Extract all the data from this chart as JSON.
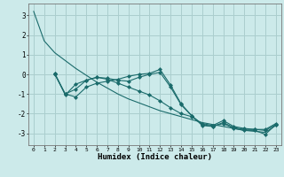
{
  "xlabel": "Humidex (Indice chaleur)",
  "background_color": "#cceaea",
  "grid_color": "#aacece",
  "line_color": "#1a6b6b",
  "xlim": [
    -0.5,
    23.5
  ],
  "ylim": [
    -3.6,
    3.6
  ],
  "yticks": [
    -3,
    -2,
    -1,
    0,
    1,
    2,
    3
  ],
  "xticks": [
    0,
    1,
    2,
    3,
    4,
    5,
    6,
    7,
    8,
    9,
    10,
    11,
    12,
    13,
    14,
    15,
    16,
    17,
    18,
    19,
    20,
    21,
    22,
    23
  ],
  "series": [
    {
      "x": [
        0,
        1,
        2,
        3,
        4,
        5,
        6,
        7,
        8,
        9,
        10,
        11,
        12,
        13,
        14,
        15,
        16,
        17,
        18,
        19,
        20,
        21,
        22,
        23
      ],
      "y": [
        3.2,
        1.7,
        1.1,
        0.7,
        0.3,
        -0.05,
        -0.4,
        -0.7,
        -1.0,
        -1.25,
        -1.45,
        -1.65,
        -1.85,
        -2.0,
        -2.15,
        -2.3,
        -2.45,
        -2.55,
        -2.65,
        -2.75,
        -2.85,
        -2.9,
        -2.95,
        -2.6
      ],
      "marker": false
    },
    {
      "x": [
        2,
        3,
        4,
        5,
        6,
        7,
        8,
        9,
        10,
        11,
        12,
        13,
        14,
        15,
        16,
        17,
        18,
        19,
        20,
        21,
        22,
        23
      ],
      "y": [
        0.05,
        -1.0,
        -1.15,
        -0.65,
        -0.45,
        -0.35,
        -0.25,
        -0.1,
        0.0,
        0.05,
        0.25,
        -0.55,
        -1.5,
        -2.1,
        -2.55,
        -2.65,
        -2.5,
        -2.75,
        -2.85,
        -2.85,
        -3.05,
        -2.55
      ],
      "marker": true
    },
    {
      "x": [
        2,
        3,
        4,
        5,
        6,
        7,
        8,
        9,
        10,
        11,
        12,
        13,
        14,
        15,
        16,
        17,
        18,
        19,
        20,
        21,
        22,
        23
      ],
      "y": [
        0.05,
        -1.05,
        -0.5,
        -0.3,
        -0.15,
        -0.2,
        -0.3,
        -0.35,
        -0.15,
        0.0,
        0.1,
        -0.65,
        -1.55,
        -2.1,
        -2.6,
        -2.65,
        -2.45,
        -2.7,
        -2.8,
        -2.8,
        -2.8,
        -2.5
      ],
      "marker": true
    },
    {
      "x": [
        2,
        3,
        4,
        5,
        6,
        7,
        8,
        9,
        10,
        11,
        12,
        13,
        14,
        15,
        16,
        17,
        18,
        19,
        20,
        21,
        22,
        23
      ],
      "y": [
        0.0,
        -1.0,
        -0.75,
        -0.3,
        -0.15,
        -0.25,
        -0.45,
        -0.65,
        -0.85,
        -1.05,
        -1.35,
        -1.7,
        -2.0,
        -2.15,
        -2.5,
        -2.6,
        -2.35,
        -2.65,
        -2.75,
        -2.8,
        -2.85,
        -2.55
      ],
      "marker": true
    }
  ]
}
